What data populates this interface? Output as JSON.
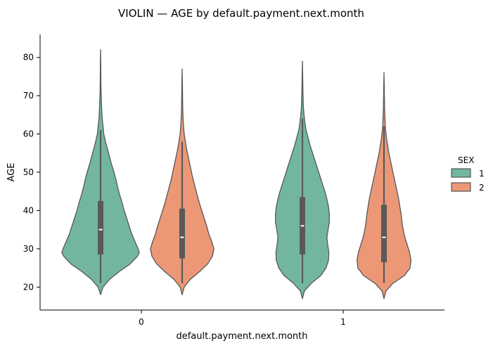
{
  "chart_data": {
    "type": "violin",
    "title": "VIOLIN — AGE by default.payment.next.month",
    "xlabel": "default.payment.next.month",
    "ylabel": "AGE",
    "categories": [
      "0",
      "1"
    ],
    "ylim": [
      14,
      86
    ],
    "yticks": [
      20,
      30,
      40,
      50,
      60,
      70,
      80
    ],
    "grid": false,
    "legend": {
      "title": "SEX",
      "placement": "right",
      "entries": [
        "1",
        "2"
      ]
    },
    "colors": {
      "1": "#73b6a0",
      "2": "#ec9876",
      "outline": "#575757",
      "box": "#595959",
      "median": "#ffffff"
    },
    "series": [
      {
        "name": "1",
        "groups": [
          {
            "category": "0",
            "min": 18,
            "max": 82,
            "whisker_low": 21,
            "q1": 28.5,
            "median": 35,
            "q3": 42.5,
            "whisker_high": 61,
            "profile": [
              [
                18,
                0.0
              ],
              [
                20,
                0.06
              ],
              [
                22,
                0.22
              ],
              [
                24,
                0.45
              ],
              [
                26,
                0.72
              ],
              [
                28,
                0.9
              ],
              [
                29,
                0.95
              ],
              [
                30,
                0.92
              ],
              [
                32,
                0.84
              ],
              [
                34,
                0.76
              ],
              [
                36,
                0.7
              ],
              [
                38,
                0.64
              ],
              [
                40,
                0.58
              ],
              [
                42,
                0.53
              ],
              [
                44,
                0.47
              ],
              [
                46,
                0.42
              ],
              [
                48,
                0.38
              ],
              [
                50,
                0.33
              ],
              [
                52,
                0.27
              ],
              [
                54,
                0.22
              ],
              [
                56,
                0.17
              ],
              [
                58,
                0.12
              ],
              [
                60,
                0.08
              ],
              [
                62,
                0.06
              ],
              [
                64,
                0.04
              ],
              [
                66,
                0.03
              ],
              [
                68,
                0.022
              ],
              [
                70,
                0.015
              ],
              [
                72,
                0.01
              ],
              [
                75,
                0.007
              ],
              [
                78,
                0.005
              ],
              [
                82,
                0.0
              ]
            ]
          },
          {
            "category": "1",
            "min": 17,
            "max": 79,
            "whisker_low": 21,
            "q1": 28.5,
            "median": 36,
            "q3": 43.5,
            "whisker_high": 64,
            "profile": [
              [
                17,
                0.0
              ],
              [
                19,
                0.05
              ],
              [
                21,
                0.22
              ],
              [
                23,
                0.45
              ],
              [
                25,
                0.58
              ],
              [
                27,
                0.64
              ],
              [
                29,
                0.65
              ],
              [
                31,
                0.62
              ],
              [
                33,
                0.6
              ],
              [
                35,
                0.63
              ],
              [
                37,
                0.66
              ],
              [
                39,
                0.66
              ],
              [
                41,
                0.64
              ],
              [
                43,
                0.6
              ],
              [
                45,
                0.55
              ],
              [
                47,
                0.49
              ],
              [
                49,
                0.43
              ],
              [
                51,
                0.37
              ],
              [
                53,
                0.31
              ],
              [
                55,
                0.25
              ],
              [
                57,
                0.19
              ],
              [
                59,
                0.14
              ],
              [
                61,
                0.09
              ],
              [
                63,
                0.06
              ],
              [
                65,
                0.04
              ],
              [
                67,
                0.025
              ],
              [
                70,
                0.015
              ],
              [
                73,
                0.01
              ],
              [
                76,
                0.006
              ],
              [
                79,
                0.0
              ]
            ]
          }
        ]
      },
      {
        "name": "2",
        "groups": [
          {
            "category": "0",
            "min": 18,
            "max": 77,
            "whisker_low": 21,
            "q1": 27.5,
            "median": 33,
            "q3": 40.5,
            "whisker_high": 58,
            "profile": [
              [
                18,
                0.0
              ],
              [
                20,
                0.05
              ],
              [
                22,
                0.2
              ],
              [
                24,
                0.42
              ],
              [
                26,
                0.62
              ],
              [
                28,
                0.74
              ],
              [
                30,
                0.78
              ],
              [
                32,
                0.72
              ],
              [
                34,
                0.65
              ],
              [
                36,
                0.6
              ],
              [
                38,
                0.54
              ],
              [
                40,
                0.48
              ],
              [
                42,
                0.42
              ],
              [
                44,
                0.37
              ],
              [
                46,
                0.32
              ],
              [
                48,
                0.27
              ],
              [
                50,
                0.23
              ],
              [
                52,
                0.19
              ],
              [
                54,
                0.15
              ],
              [
                56,
                0.11
              ],
              [
                58,
                0.08
              ],
              [
                60,
                0.05
              ],
              [
                62,
                0.035
              ],
              [
                64,
                0.025
              ],
              [
                66,
                0.018
              ],
              [
                68,
                0.012
              ],
              [
                71,
                0.008
              ],
              [
                74,
                0.005
              ],
              [
                77,
                0.0
              ]
            ]
          },
          {
            "category": "1",
            "min": 17,
            "max": 76,
            "whisker_low": 21,
            "q1": 26.5,
            "median": 33,
            "q3": 41.5,
            "whisker_high": 62,
            "profile": [
              [
                17,
                0.0
              ],
              [
                19,
                0.05
              ],
              [
                21,
                0.22
              ],
              [
                23,
                0.5
              ],
              [
                25,
                0.64
              ],
              [
                27,
                0.66
              ],
              [
                29,
                0.63
              ],
              [
                31,
                0.57
              ],
              [
                33,
                0.51
              ],
              [
                35,
                0.47
              ],
              [
                37,
                0.44
              ],
              [
                39,
                0.42
              ],
              [
                41,
                0.39
              ],
              [
                43,
                0.36
              ],
              [
                45,
                0.32
              ],
              [
                47,
                0.28
              ],
              [
                49,
                0.24
              ],
              [
                51,
                0.2
              ],
              [
                53,
                0.16
              ],
              [
                55,
                0.12
              ],
              [
                57,
                0.09
              ],
              [
                59,
                0.06
              ],
              [
                61,
                0.04
              ],
              [
                63,
                0.028
              ],
              [
                65,
                0.02
              ],
              [
                67,
                0.014
              ],
              [
                70,
                0.009
              ],
              [
                73,
                0.005
              ],
              [
                76,
                0.0
              ]
            ]
          }
        ]
      }
    ]
  }
}
